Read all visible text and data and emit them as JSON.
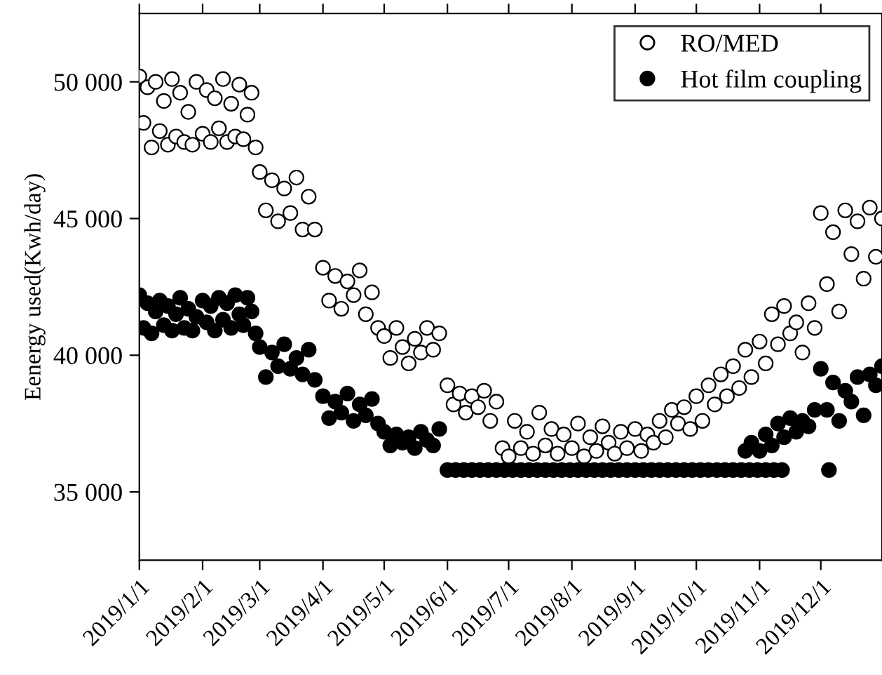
{
  "chart_data": {
    "type": "scatter",
    "ylabel": "Eenergy used(Kwh/day)",
    "xlim": [
      "2019-01-01",
      "2019-12-31"
    ],
    "xticks": [
      {
        "value": "2019-01-01",
        "label": "2019/1/1"
      },
      {
        "value": "2019-02-01",
        "label": "2019/2/1"
      },
      {
        "value": "2019-03-01",
        "label": "2019/3/1"
      },
      {
        "value": "2019-04-01",
        "label": "2019/4/1"
      },
      {
        "value": "2019-05-01",
        "label": "2019/5/1"
      },
      {
        "value": "2019-06-01",
        "label": "2019/6/1"
      },
      {
        "value": "2019-07-01",
        "label": "2019/7/1"
      },
      {
        "value": "2019-08-01",
        "label": "2019/8/1"
      },
      {
        "value": "2019-09-01",
        "label": "2019/9/1"
      },
      {
        "value": "2019-10-01",
        "label": "2019/10/1"
      },
      {
        "value": "2019-11-01",
        "label": "2019/11/1"
      },
      {
        "value": "2019-12-01",
        "label": "2019/12/1"
      }
    ],
    "ylim": [
      32500,
      52500
    ],
    "yticks": [
      {
        "value": 35000,
        "label": "35 000"
      },
      {
        "value": 40000,
        "label": "40 000"
      },
      {
        "value": 45000,
        "label": "45 000"
      },
      {
        "value": 50000,
        "label": "50 000"
      }
    ],
    "grid": false,
    "legend": "top right",
    "marker": "circle",
    "series": [
      {
        "name": "RO/MED",
        "color": "#ffffff",
        "x": [
          "2019-01-01",
          "2019-01-03",
          "2019-01-05",
          "2019-01-07",
          "2019-01-09",
          "2019-01-11",
          "2019-01-13",
          "2019-01-15",
          "2019-01-17",
          "2019-01-19",
          "2019-01-21",
          "2019-01-23",
          "2019-01-25",
          "2019-01-27",
          "2019-01-29",
          "2019-02-01",
          "2019-02-03",
          "2019-02-05",
          "2019-02-07",
          "2019-02-09",
          "2019-02-11",
          "2019-02-13",
          "2019-02-15",
          "2019-02-17",
          "2019-02-19",
          "2019-02-21",
          "2019-02-23",
          "2019-02-25",
          "2019-02-27",
          "2019-03-01",
          "2019-03-04",
          "2019-03-07",
          "2019-03-10",
          "2019-03-13",
          "2019-03-16",
          "2019-03-19",
          "2019-03-22",
          "2019-03-25",
          "2019-03-28",
          "2019-04-01",
          "2019-04-04",
          "2019-04-07",
          "2019-04-10",
          "2019-04-13",
          "2019-04-16",
          "2019-04-19",
          "2019-04-22",
          "2019-04-25",
          "2019-04-28",
          "2019-05-01",
          "2019-05-04",
          "2019-05-07",
          "2019-05-10",
          "2019-05-13",
          "2019-05-16",
          "2019-05-19",
          "2019-05-22",
          "2019-05-25",
          "2019-05-28",
          "2019-06-01",
          "2019-06-04",
          "2019-06-07",
          "2019-06-10",
          "2019-06-13",
          "2019-06-16",
          "2019-06-19",
          "2019-06-22",
          "2019-06-25",
          "2019-06-28",
          "2019-07-01",
          "2019-07-04",
          "2019-07-07",
          "2019-07-10",
          "2019-07-13",
          "2019-07-16",
          "2019-07-19",
          "2019-07-22",
          "2019-07-25",
          "2019-07-28",
          "2019-08-01",
          "2019-08-04",
          "2019-08-07",
          "2019-08-10",
          "2019-08-13",
          "2019-08-16",
          "2019-08-19",
          "2019-08-22",
          "2019-08-25",
          "2019-08-28",
          "2019-09-01",
          "2019-09-04",
          "2019-09-07",
          "2019-09-10",
          "2019-09-13",
          "2019-09-16",
          "2019-09-19",
          "2019-09-22",
          "2019-09-25",
          "2019-09-28",
          "2019-10-01",
          "2019-10-04",
          "2019-10-07",
          "2019-10-10",
          "2019-10-13",
          "2019-10-16",
          "2019-10-19",
          "2019-10-22",
          "2019-10-25",
          "2019-10-28",
          "2019-11-01",
          "2019-11-04",
          "2019-11-07",
          "2019-11-10",
          "2019-11-13",
          "2019-11-16",
          "2019-11-19",
          "2019-11-22",
          "2019-11-25",
          "2019-11-28",
          "2019-12-01",
          "2019-12-04",
          "2019-12-07",
          "2019-12-10",
          "2019-12-13",
          "2019-12-16",
          "2019-12-19",
          "2019-12-22",
          "2019-12-25",
          "2019-12-28",
          "2019-12-31"
        ],
        "values": [
          50200,
          48500,
          49800,
          47600,
          50000,
          48200,
          49300,
          47700,
          50100,
          48000,
          49600,
          47800,
          48900,
          47700,
          50000,
          48100,
          49700,
          47800,
          49400,
          48300,
          50100,
          47800,
          49200,
          48000,
          49900,
          47900,
          48800,
          49600,
          47600,
          46700,
          45300,
          46400,
          44900,
          46100,
          45200,
          46500,
          44600,
          45800,
          44600,
          43200,
          42000,
          42900,
          41700,
          42700,
          42200,
          43100,
          41500,
          42300,
          41000,
          40700,
          39900,
          41000,
          40300,
          39700,
          40600,
          40100,
          41000,
          40200,
          40800,
          38900,
          38200,
          38600,
          37900,
          38500,
          38100,
          38700,
          37600,
          38300,
          36600,
          36300,
          37600,
          36600,
          37200,
          36400,
          37900,
          36700,
          37300,
          36400,
          37100,
          36600,
          37500,
          36300,
          37000,
          36500,
          37400,
          36800,
          36400,
          37200,
          36600,
          37300,
          36500,
          37100,
          36800,
          37600,
          37000,
          38000,
          37500,
          38100,
          37300,
          38500,
          37600,
          38900,
          38200,
          39300,
          38500,
          39600,
          38800,
          40200,
          39200,
          40500,
          39700,
          41500,
          40400,
          41800,
          40800,
          41200,
          40100,
          41900,
          41000,
          45200,
          42600,
          44500,
          41600,
          45300,
          43700,
          44900,
          42800,
          45400,
          43600,
          45000
        ]
      },
      {
        "name": "Hot film coupling",
        "color": "#000000",
        "x": [
          "2019-01-01",
          "2019-01-03",
          "2019-01-05",
          "2019-01-07",
          "2019-01-09",
          "2019-01-11",
          "2019-01-13",
          "2019-01-15",
          "2019-01-17",
          "2019-01-19",
          "2019-01-21",
          "2019-01-23",
          "2019-01-25",
          "2019-01-27",
          "2019-01-29",
          "2019-02-01",
          "2019-02-03",
          "2019-02-05",
          "2019-02-07",
          "2019-02-09",
          "2019-02-11",
          "2019-02-13",
          "2019-02-15",
          "2019-02-17",
          "2019-02-19",
          "2019-02-21",
          "2019-02-23",
          "2019-02-25",
          "2019-02-27",
          "2019-03-01",
          "2019-03-04",
          "2019-03-07",
          "2019-03-10",
          "2019-03-13",
          "2019-03-16",
          "2019-03-19",
          "2019-03-22",
          "2019-03-25",
          "2019-03-28",
          "2019-04-01",
          "2019-04-04",
          "2019-04-07",
          "2019-04-10",
          "2019-04-13",
          "2019-04-16",
          "2019-04-19",
          "2019-04-22",
          "2019-04-25",
          "2019-04-28",
          "2019-05-01",
          "2019-05-04",
          "2019-05-07",
          "2019-05-10",
          "2019-05-13",
          "2019-05-16",
          "2019-05-19",
          "2019-05-22",
          "2019-05-25",
          "2019-05-28",
          "2019-06-01",
          "2019-06-05",
          "2019-06-09",
          "2019-06-13",
          "2019-06-17",
          "2019-06-21",
          "2019-06-25",
          "2019-06-29",
          "2019-07-03",
          "2019-07-07",
          "2019-07-11",
          "2019-07-15",
          "2019-07-19",
          "2019-07-23",
          "2019-07-27",
          "2019-07-31",
          "2019-08-04",
          "2019-08-08",
          "2019-08-12",
          "2019-08-16",
          "2019-08-20",
          "2019-08-24",
          "2019-08-28",
          "2019-09-01",
          "2019-09-05",
          "2019-09-09",
          "2019-09-13",
          "2019-09-17",
          "2019-09-21",
          "2019-09-25",
          "2019-09-29",
          "2019-10-03",
          "2019-10-07",
          "2019-10-11",
          "2019-10-15",
          "2019-10-19",
          "2019-10-23",
          "2019-10-27",
          "2019-10-31",
          "2019-11-04",
          "2019-11-08",
          "2019-11-12",
          "2019-12-05",
          "2019-10-25",
          "2019-10-28",
          "2019-11-01",
          "2019-11-04",
          "2019-11-07",
          "2019-11-10",
          "2019-11-13",
          "2019-11-16",
          "2019-11-19",
          "2019-11-22",
          "2019-11-25",
          "2019-11-28",
          "2019-12-01",
          "2019-12-04",
          "2019-12-07",
          "2019-12-10",
          "2019-12-13",
          "2019-12-16",
          "2019-12-19",
          "2019-12-22",
          "2019-12-25",
          "2019-12-28",
          "2019-12-31"
        ],
        "values": [
          42200,
          41000,
          41900,
          40800,
          41600,
          42000,
          41100,
          41800,
          40900,
          41500,
          42100,
          41000,
          41700,
          40900,
          41400,
          42000,
          41200,
          41800,
          40900,
          42100,
          41300,
          41900,
          41000,
          42200,
          41500,
          41100,
          42100,
          41600,
          40800,
          40300,
          39200,
          40100,
          39600,
          40400,
          39500,
          39900,
          39300,
          40200,
          39100,
          38500,
          37700,
          38300,
          37900,
          38600,
          37600,
          38200,
          37800,
          38400,
          37500,
          37200,
          36700,
          37100,
          36800,
          37000,
          36600,
          37200,
          36900,
          36700,
          37300,
          35800,
          35800,
          35800,
          35800,
          35800,
          35800,
          35800,
          35800,
          35800,
          35800,
          35800,
          35800,
          35800,
          35800,
          35800,
          35800,
          35800,
          35800,
          35800,
          35800,
          35800,
          35800,
          35800,
          35800,
          35800,
          35800,
          35800,
          35800,
          35800,
          35800,
          35800,
          35800,
          35800,
          35800,
          35800,
          35800,
          35800,
          35800,
          35800,
          35800,
          35800,
          35800,
          35800,
          36500,
          36800,
          36500,
          37100,
          36700,
          37500,
          37000,
          37700,
          37200,
          37600,
          37400,
          38000,
          39500,
          38000,
          39000,
          37600,
          38700,
          38300,
          39200,
          37800,
          39300,
          38900,
          39600
        ]
      }
    ]
  }
}
